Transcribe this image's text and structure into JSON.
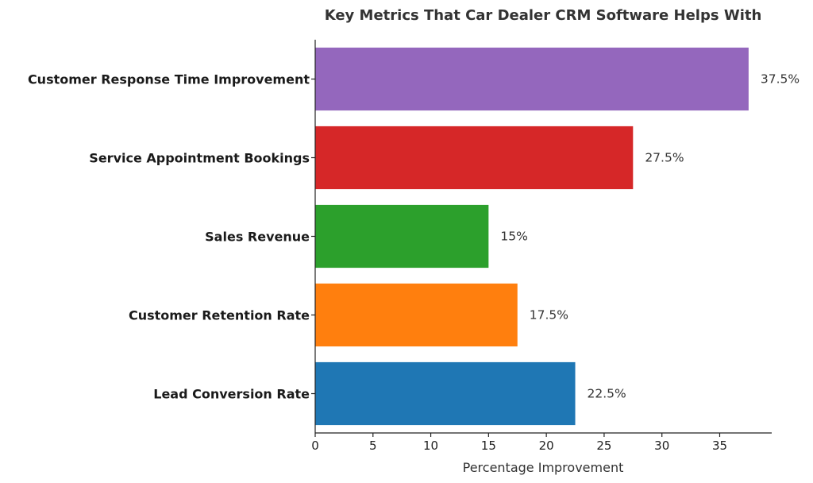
{
  "chart_data": {
    "type": "bar",
    "orientation": "horizontal",
    "title": "Key Metrics That Car Dealer CRM Software Helps With",
    "xlabel": "Percentage Improvement",
    "ylabel": "",
    "xlim": [
      0,
      39.5
    ],
    "xticks": [
      0,
      5,
      10,
      15,
      20,
      25,
      30,
      35
    ],
    "grid": false,
    "categories": [
      "Lead Conversion Rate",
      "Customer Retention Rate",
      "Sales Revenue",
      "Service Appointment Bookings",
      "Customer Response Time Improvement"
    ],
    "values": [
      22.5,
      17.5,
      15,
      27.5,
      37.5
    ],
    "value_labels": [
      "22.5%",
      "17.5%",
      "15%",
      "27.5%",
      "37.5%"
    ],
    "colors": [
      "#1f77b4",
      "#ff7f0e",
      "#2ca02c",
      "#d62728",
      "#9467bd"
    ]
  }
}
